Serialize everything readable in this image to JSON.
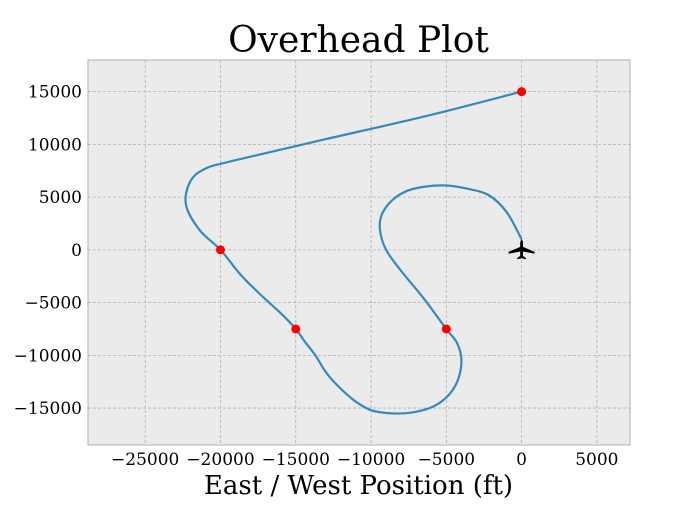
{
  "chart_data": {
    "type": "line",
    "title": "Overhead Plot",
    "xlabel": "East / West Position (ft)",
    "ylabel": "",
    "xlim": [
      -28800,
      7200
    ],
    "ylim": [
      -18500,
      18000
    ],
    "x_ticks": [
      -25000,
      -20000,
      -15000,
      -10000,
      -5000,
      0,
      5000
    ],
    "x_tick_labels": [
      "−25000",
      "−20000",
      "−15000",
      "−10000",
      "−5000",
      "0",
      "5000"
    ],
    "y_ticks": [
      15000,
      10000,
      5000,
      0,
      -5000,
      -10000,
      -15000
    ],
    "y_tick_labels": [
      "15000",
      "10000",
      "5000",
      "0",
      "−5000",
      "−10000",
      "−15000"
    ],
    "grid": true,
    "colors": {
      "background": "#ebebeb",
      "grid": "#b0b0b0",
      "path": "#348abd",
      "waypoint": "#ff0000",
      "aircraft": "#000000"
    },
    "series": [
      {
        "x": [
          0,
          -1000,
          -2200,
          -3600,
          -5000,
          -6400,
          -7600,
          -8600,
          -9300,
          -9400,
          -9000,
          -8000,
          -6500,
          -5000,
          -4300,
          -4000,
          -4200,
          -4800,
          -5800,
          -7200,
          -8600,
          -10000,
          -11100,
          -12200,
          -13000,
          -13700,
          -14400,
          -15000,
          -16000,
          -17300,
          -18700,
          -20000,
          -21400,
          -22300,
          -22000,
          -21000,
          -19000,
          -13000,
          -6000,
          0
        ],
        "y": [
          1000,
          3600,
          5200,
          5800,
          6100,
          6000,
          5600,
          4700,
          3300,
          1800,
          0,
          -2000,
          -4600,
          -7500,
          -8800,
          -10400,
          -12200,
          -13700,
          -14800,
          -15400,
          -15500,
          -15200,
          -14300,
          -12900,
          -11600,
          -10000,
          -8700,
          -7500,
          -6000,
          -4300,
          -2300,
          0,
          1900,
          4300,
          6500,
          7700,
          8500,
          10500,
          12800,
          15000
        ]
      }
    ],
    "waypoints": {
      "x": [
        0,
        -20000,
        -15000,
        -5000
      ],
      "y": [
        15000,
        0,
        -7500,
        -7500
      ]
    },
    "aircraft": {
      "x": 0,
      "y": 0,
      "icon": "airplane-icon"
    }
  }
}
